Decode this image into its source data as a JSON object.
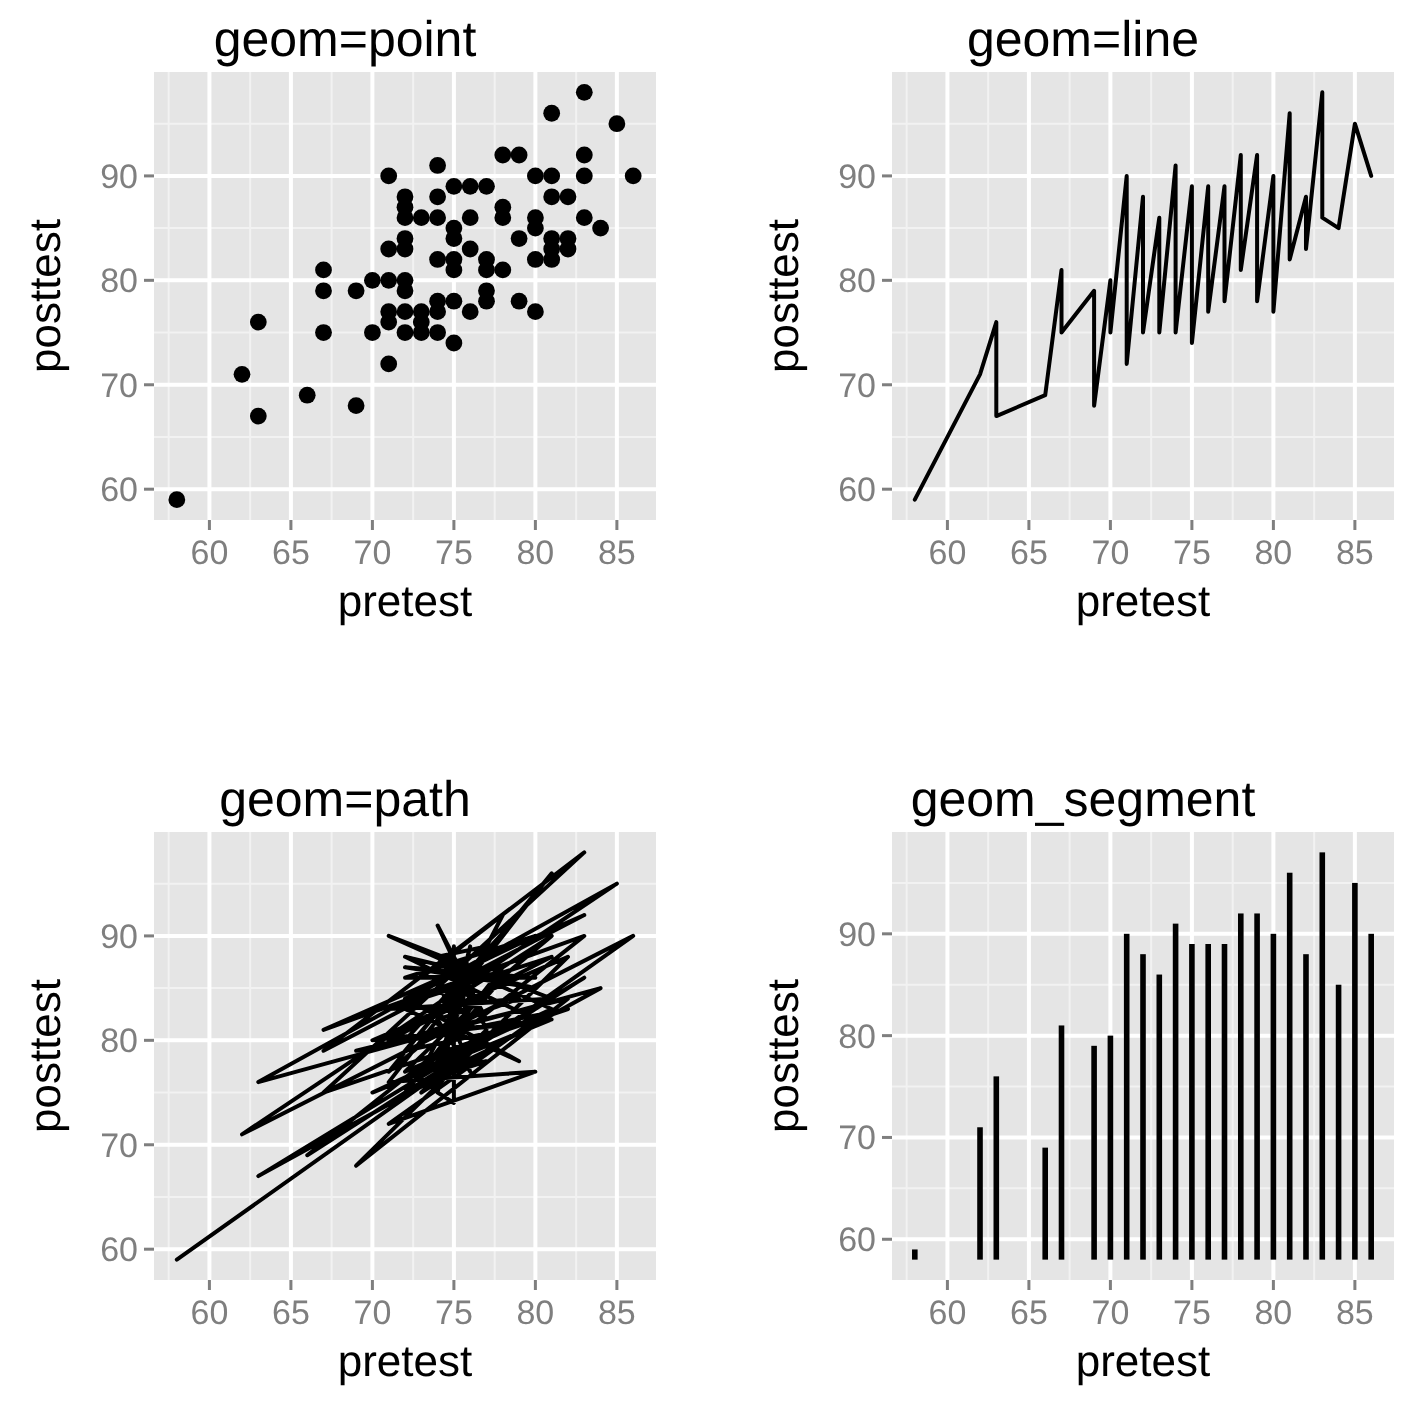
{
  "chart_data": [
    {
      "type": "scatter",
      "title": "geom=point",
      "xlabel": "pretest",
      "ylabel": "posttest",
      "marker": "circle",
      "grid": true,
      "xlim": [
        56.6,
        87.4
      ],
      "ylim": [
        57.05,
        99.95
      ],
      "xticks": [
        60,
        65,
        70,
        75,
        80,
        85
      ],
      "yticks": [
        60,
        70,
        80,
        90
      ],
      "x": [
        58,
        62,
        63,
        63,
        66,
        67,
        67,
        67,
        69,
        69,
        70,
        70,
        71,
        71,
        71,
        71,
        71,
        71,
        72,
        72,
        72,
        72,
        72,
        72,
        72,
        72,
        72,
        73,
        73,
        73,
        73,
        74,
        74,
        74,
        74,
        74,
        74,
        74,
        75,
        75,
        75,
        75,
        75,
        75,
        75,
        76,
        76,
        76,
        76,
        77,
        77,
        77,
        77,
        77,
        78,
        78,
        78,
        78,
        79,
        79,
        79,
        80,
        80,
        80,
        80,
        80,
        81,
        81,
        81,
        81,
        81,
        81,
        82,
        82,
        82,
        83,
        83,
        83,
        83,
        84,
        85,
        86
      ],
      "values": [
        59,
        71,
        76,
        67,
        69,
        81,
        79,
        75,
        79,
        68,
        80,
        75,
        90,
        83,
        80,
        77,
        76,
        72,
        88,
        87,
        86,
        84,
        83,
        80,
        79,
        77,
        75,
        86,
        77,
        76,
        75,
        91,
        88,
        86,
        82,
        78,
        77,
        75,
        89,
        85,
        84,
        82,
        81,
        78,
        74,
        89,
        86,
        83,
        77,
        89,
        82,
        81,
        79,
        78,
        92,
        87,
        86,
        81,
        92,
        84,
        78,
        90,
        86,
        85,
        82,
        77,
        96,
        90,
        88,
        84,
        83,
        82,
        88,
        84,
        83,
        98,
        92,
        90,
        86,
        85,
        95,
        90
      ]
    },
    {
      "type": "line",
      "title": "geom=line",
      "xlabel": "pretest",
      "ylabel": "posttest",
      "grid": true,
      "xlim": [
        56.6,
        87.4
      ],
      "ylim": [
        57.05,
        99.95
      ],
      "xticks": [
        60,
        65,
        70,
        75,
        80,
        85
      ],
      "yticks": [
        60,
        70,
        80,
        90
      ],
      "x": [
        58,
        62,
        63,
        63,
        66,
        67,
        67,
        67,
        69,
        69,
        70,
        70,
        71,
        71,
        71,
        71,
        71,
        71,
        72,
        72,
        72,
        72,
        72,
        72,
        72,
        72,
        72,
        73,
        73,
        73,
        73,
        74,
        74,
        74,
        74,
        74,
        74,
        74,
        75,
        75,
        75,
        75,
        75,
        75,
        75,
        76,
        76,
        76,
        76,
        77,
        77,
        77,
        77,
        77,
        78,
        78,
        78,
        78,
        79,
        79,
        79,
        80,
        80,
        80,
        80,
        80,
        81,
        81,
        81,
        81,
        81,
        81,
        82,
        82,
        82,
        83,
        83,
        83,
        83,
        84,
        85,
        86
      ],
      "values": [
        59,
        71,
        76,
        67,
        69,
        81,
        79,
        75,
        79,
        68,
        80,
        75,
        90,
        83,
        80,
        77,
        76,
        72,
        88,
        87,
        86,
        84,
        83,
        80,
        79,
        77,
        75,
        86,
        77,
        76,
        75,
        91,
        88,
        86,
        82,
        78,
        77,
        75,
        89,
        85,
        84,
        82,
        81,
        78,
        74,
        89,
        86,
        83,
        77,
        89,
        82,
        81,
        79,
        78,
        92,
        87,
        86,
        81,
        92,
        84,
        78,
        90,
        86,
        85,
        82,
        77,
        96,
        90,
        88,
        84,
        83,
        82,
        88,
        84,
        83,
        98,
        92,
        90,
        86,
        85,
        95,
        90
      ]
    },
    {
      "type": "line",
      "title": "geom=path",
      "xlabel": "pretest",
      "ylabel": "posttest",
      "grid": true,
      "xlim": [
        56.6,
        87.4
      ],
      "ylim": [
        57.05,
        99.95
      ],
      "xticks": [
        60,
        65,
        70,
        75,
        80,
        85
      ],
      "yticks": [
        60,
        70,
        80,
        90
      ],
      "x": [
        58,
        86,
        62,
        85,
        63,
        84,
        63,
        83,
        66,
        83,
        67,
        83,
        67,
        83,
        67,
        82,
        69,
        82,
        69,
        82,
        70,
        81,
        70,
        81,
        71,
        81,
        71,
        81,
        71,
        81,
        71,
        81,
        71,
        80,
        71,
        80,
        72,
        80,
        72,
        80,
        72,
        80,
        72,
        79,
        72,
        79,
        72,
        79,
        72,
        78,
        72,
        78,
        72,
        78,
        73,
        78,
        73,
        77,
        73,
        77,
        73,
        77,
        74,
        77,
        74,
        77,
        74,
        76,
        74,
        76,
        74,
        76,
        74,
        76,
        74,
        75,
        75,
        75,
        75,
        75,
        75,
        75
      ],
      "values": [
        59,
        90,
        71,
        95,
        76,
        85,
        67,
        86,
        69,
        90,
        81,
        92,
        79,
        98,
        75,
        83,
        79,
        84,
        68,
        88,
        80,
        82,
        75,
        83,
        90,
        84,
        83,
        88,
        80,
        90,
        77,
        96,
        76,
        77,
        72,
        82,
        88,
        85,
        87,
        86,
        86,
        90,
        84,
        78,
        83,
        84,
        80,
        92,
        79,
        81,
        77,
        86,
        75,
        87,
        86,
        92,
        77,
        78,
        76,
        79,
        75,
        81,
        91,
        82,
        88,
        89,
        86,
        77,
        82,
        83,
        78,
        86,
        77,
        89,
        75,
        74,
        89,
        78,
        85,
        81,
        84,
        82
      ]
    },
    {
      "type": "bar",
      "title": "geom_segment",
      "xlabel": "pretest",
      "ylabel": "posttest",
      "grid": true,
      "xlim": [
        56.6,
        87.4
      ],
      "ylim": [
        56,
        100
      ],
      "xticks": [
        60,
        65,
        70,
        75,
        80,
        85
      ],
      "yticks": [
        60,
        70,
        80,
        90
      ],
      "x": [
        58,
        62,
        63,
        66,
        67,
        69,
        70,
        71,
        72,
        73,
        74,
        75,
        76,
        77,
        78,
        79,
        80,
        81,
        82,
        83,
        84,
        85,
        86
      ],
      "base": [
        58,
        58,
        58,
        58,
        58,
        58,
        58,
        58,
        58,
        58,
        58,
        58,
        58,
        58,
        58,
        58,
        58,
        58,
        58,
        58,
        58,
        58,
        58
      ],
      "values": [
        1,
        13,
        18,
        11,
        23,
        21,
        22,
        32,
        30,
        28,
        33,
        31,
        31,
        31,
        34,
        34,
        32,
        38,
        30,
        40,
        27,
        37,
        32
      ]
    }
  ]
}
